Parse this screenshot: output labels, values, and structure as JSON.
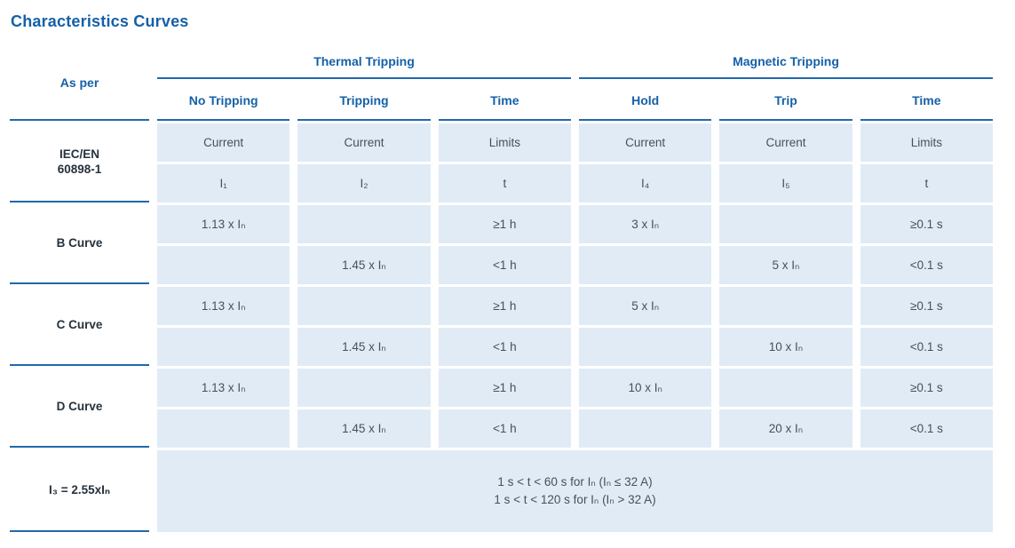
{
  "title": "Characteristics Curves",
  "colors": {
    "accent_blue": "#1560a8",
    "rule_blue": "#2268ac",
    "cell_background": "#e1ebf6",
    "cell_text": "#46505a",
    "row_label_text": "#26313c"
  },
  "table": {
    "corner_header": "As per",
    "group_headers": [
      "Thermal Tripping",
      "Magnetic Tripping"
    ],
    "sub_headers": [
      "No Tripping",
      "Tripping",
      "Time",
      "Hold",
      "Trip",
      "Time"
    ],
    "row_groups": [
      {
        "label": "IEC/EN\n60898-1",
        "rows": [
          [
            "Current",
            "Current",
            "Limits",
            "Current",
            "Current",
            "Limits"
          ],
          [
            "I₁",
            "I₂",
            "t",
            "I₄",
            "I₅",
            "t"
          ]
        ]
      },
      {
        "label": "B Curve",
        "rows": [
          [
            "1.13 x Iₙ",
            "",
            "≥1 h",
            "3 x Iₙ",
            "",
            "≥0.1 s"
          ],
          [
            "",
            "1.45 x Iₙ",
            "<1 h",
            "",
            "5 x Iₙ",
            "<0.1 s"
          ]
        ]
      },
      {
        "label": "C Curve",
        "rows": [
          [
            "1.13 x Iₙ",
            "",
            "≥1 h",
            "5 x Iₙ",
            "",
            "≥0.1 s"
          ],
          [
            "",
            "1.45 x Iₙ",
            "<1 h",
            "",
            "10 x Iₙ",
            "<0.1 s"
          ]
        ]
      },
      {
        "label": "D Curve",
        "rows": [
          [
            "1.13 x Iₙ",
            "",
            "≥1 h",
            "10 x Iₙ",
            "",
            "≥0.1 s"
          ],
          [
            "",
            "1.45 x Iₙ",
            "<1 h",
            "",
            "20 x Iₙ",
            "<0.1 s"
          ]
        ]
      },
      {
        "label": "I₃ = 2.55xIₙ",
        "note_lines": [
          "1 s < t < 60 s for Iₙ (Iₙ ≤ 32 A)",
          "1 s < t < 120 s for Iₙ (Iₙ > 32 A)"
        ]
      }
    ]
  }
}
